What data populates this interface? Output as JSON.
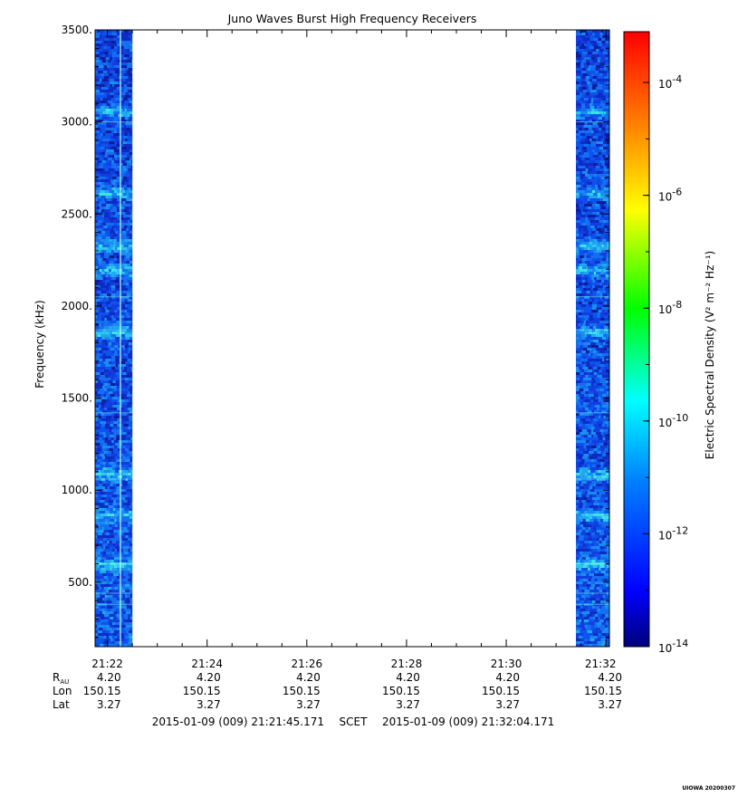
{
  "chart_data": {
    "type": "heatmap",
    "title": "Juno Waves Burst High Frequency Receivers",
    "ylabel": "Frequency (kHz)",
    "ylim": [
      150,
      3500
    ],
    "yticks": [
      {
        "value": 500,
        "label": "500."
      },
      {
        "value": 1000,
        "label": "1000."
      },
      {
        "value": 1500,
        "label": "1500."
      },
      {
        "value": 2000,
        "label": "2000."
      },
      {
        "value": 2500,
        "label": "2500."
      },
      {
        "value": 3000,
        "label": "3000."
      },
      {
        "value": 3500,
        "label": "3500."
      }
    ],
    "x_start": "2015-01-09 (009) 21:21:45.171",
    "x_scale_label": "SCET",
    "x_end": "2015-01-09 (009) 21:32:04.171",
    "xlim_minutes": [
      21.7529,
      32.0695
    ],
    "xticks": [
      {
        "minute": 22,
        "label": "21:22"
      },
      {
        "minute": 24,
        "label": "21:24"
      },
      {
        "minute": 26,
        "label": "21:26"
      },
      {
        "minute": 28,
        "label": "21:28"
      },
      {
        "minute": 30,
        "label": "21:30"
      },
      {
        "minute": 32,
        "label": "21:32"
      }
    ],
    "ephemeris_rows": [
      {
        "name": "R",
        "sub": "AU",
        "values": [
          "4.20",
          "4.20",
          "4.20",
          "4.20",
          "4.20",
          "4.20"
        ]
      },
      {
        "name": "Lon",
        "values": [
          "150.15",
          "150.15",
          "150.15",
          "150.15",
          "150.15",
          "150.15"
        ]
      },
      {
        "name": "Lat",
        "values": [
          "3.27",
          "3.27",
          "3.27",
          "3.27",
          "3.27",
          "3.27"
        ]
      }
    ],
    "data_blocks_minutes": [
      [
        21.7529,
        22.5
      ],
      [
        31.4,
        32.0695
      ]
    ],
    "enhanced_bands_khz": [
      3060,
      2620,
      2330,
      2200,
      1860,
      1090,
      870,
      600
    ],
    "spectral_density_range_log10": [
      -12.2,
      -10.8
    ],
    "colorbar": {
      "label": "Electric Spectral Density (V² m⁻² Hz⁻¹)",
      "scale": "log",
      "range_log10": [
        -14,
        -3.1
      ],
      "ticks": [
        {
          "exp": -14,
          "label": "10",
          "sup": "-14"
        },
        {
          "exp": -12,
          "label": "10",
          "sup": "-12"
        },
        {
          "exp": -10,
          "label": "10",
          "sup": "-10"
        },
        {
          "exp": -8,
          "label": "10",
          "sup": "-8"
        },
        {
          "exp": -6,
          "label": "10",
          "sup": "-6"
        },
        {
          "exp": -4,
          "label": "10",
          "sup": "-4"
        }
      ],
      "colors": [
        "#00007a",
        "#0000ff",
        "#0080ff",
        "#00ffff",
        "#00ff00",
        "#ffff00",
        "#ff8000",
        "#ff0000"
      ]
    },
    "footer_tag": "UIOWA 20200307"
  }
}
